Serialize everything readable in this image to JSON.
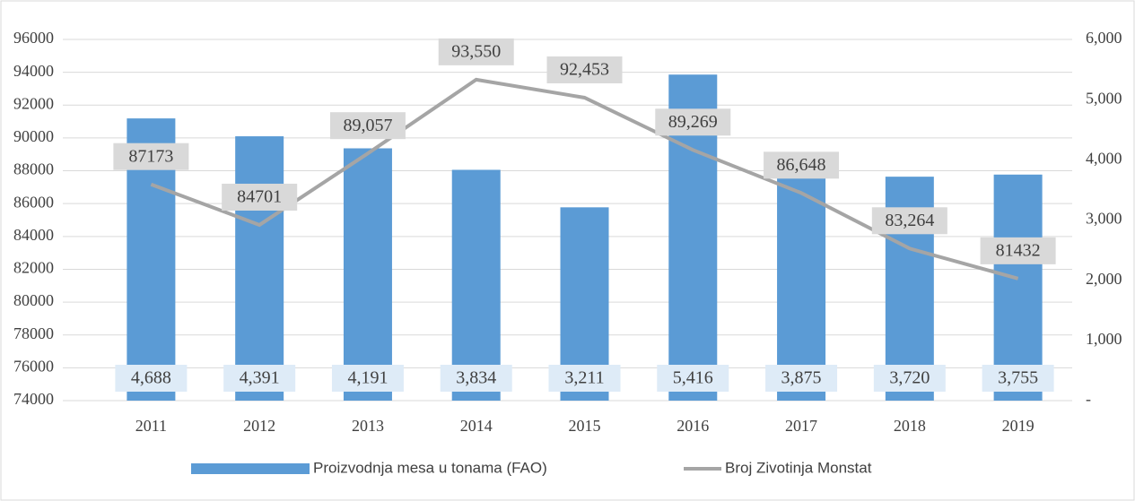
{
  "chart_data": {
    "type": "bar-line",
    "categories": [
      "2011",
      "2012",
      "2013",
      "2014",
      "2015",
      "2016",
      "2017",
      "2018",
      "2019"
    ],
    "series": [
      {
        "name": "Proizvodnja mesa u tonama (FAO)",
        "type": "bar",
        "axis": "y2",
        "color": "#5b9bd5",
        "values": [
          4688,
          4391,
          4191,
          3834,
          3211,
          5416,
          3875,
          3720,
          3755
        ],
        "value_labels": [
          "4,688",
          "4,391",
          "4,191",
          "3,834",
          "3,211",
          "5,416",
          "3,875",
          "3,720",
          "3,755"
        ]
      },
      {
        "name": "Broj Zivotinja Monstat",
        "type": "line",
        "axis": "y",
        "color": "#a5a5a5",
        "values": [
          87173,
          84701,
          89057,
          93550,
          92453,
          89269,
          86648,
          83264,
          81432
        ],
        "value_labels": [
          "87173",
          "84701",
          "89,057",
          "93,550",
          "92,453",
          "89,269",
          "86,648",
          "83,264",
          "81432"
        ]
      }
    ],
    "ylim": [
      74000,
      96000
    ],
    "yticks": [
      74000,
      76000,
      78000,
      80000,
      82000,
      84000,
      86000,
      88000,
      90000,
      92000,
      94000,
      96000
    ],
    "y2lim": [
      0,
      6000
    ],
    "y2ticks": [
      {
        "value": 0,
        "label": "-"
      },
      {
        "value": 1000,
        "label": "1,000"
      },
      {
        "value": 2000,
        "label": "2,000"
      },
      {
        "value": 3000,
        "label": "3,000"
      },
      {
        "value": 4000,
        "label": "4,000"
      },
      {
        "value": 5000,
        "label": "5,000"
      },
      {
        "value": 6000,
        "label": "6,000"
      }
    ],
    "grid": true,
    "legend": "bottom"
  }
}
